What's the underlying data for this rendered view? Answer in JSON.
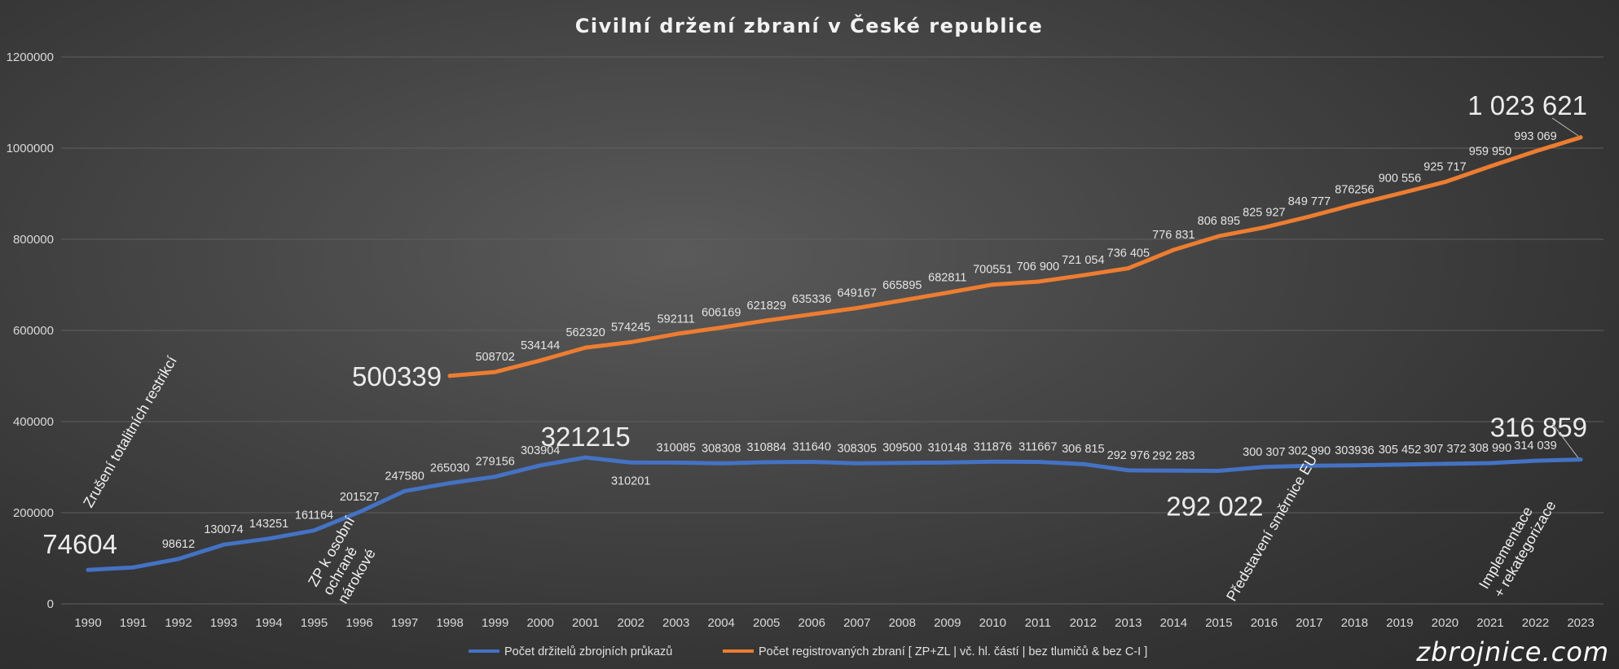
{
  "chart_data": {
    "type": "line",
    "title": "Civilní držení zbraní v České republice",
    "xlabel": "",
    "ylabel": "",
    "ylim": [
      0,
      1200000
    ],
    "yticks": [
      {
        "value": 0,
        "label": "0"
      },
      {
        "value": 200000,
        "label": "200000"
      },
      {
        "value": 400000,
        "label": "400000"
      },
      {
        "value": 600000,
        "label": "600000"
      },
      {
        "value": 800000,
        "label": "800000"
      },
      {
        "value": 1000000,
        "label": "1000000"
      },
      {
        "value": 1200000,
        "label": "1200000"
      }
    ],
    "grid": true,
    "legend": "bottom",
    "categories": [
      "1990",
      "1991",
      "1992",
      "1993",
      "1994",
      "1995",
      "1996",
      "1997",
      "1998",
      "1999",
      "2000",
      "2001",
      "2002",
      "2003",
      "2004",
      "2005",
      "2006",
      "2007",
      "2008",
      "2009",
      "2010",
      "2011",
      "2012",
      "2013",
      "2014",
      "2015",
      "2016",
      "2017",
      "2018",
      "2019",
      "2020",
      "2021",
      "2022",
      "2023"
    ],
    "series": [
      {
        "name": "Počet držitelů zbrojních průkazů",
        "color": "#4472c4",
        "values": [
          74604,
          80000,
          98612,
          130074,
          143251,
          161164,
          201527,
          247580,
          265030,
          279156,
          303904,
          321215,
          310201,
          310085,
          308308,
          310884,
          311640,
          308305,
          309500,
          310148,
          311876,
          311667,
          306815,
          292976,
          292283,
          292022,
          300307,
          302990,
          303936,
          305452,
          307372,
          308990,
          314039,
          316859
        ],
        "labels": [
          "74604",
          "",
          "98612",
          "130074",
          "143251",
          "161164",
          "201527",
          "247580",
          "265030",
          "279156",
          "303904",
          "321215",
          "310201",
          "310085",
          "308308",
          "310884",
          "311640",
          "308305",
          "309500",
          "310148",
          "311876",
          "311667",
          "306 815",
          "292 976",
          "292 283",
          "292 022",
          "300 307",
          "302 990",
          "303936",
          "305 452",
          "307 372",
          "308 990",
          "314 039",
          "316 859"
        ]
      },
      {
        "name": "Počet registrovaných zbraní [ ZP+ZL | vč. hl. částí | bez tlumičů & bez C-I ]",
        "color": "#ed7d31",
        "values": [
          null,
          null,
          null,
          null,
          null,
          null,
          null,
          null,
          500339,
          508702,
          534144,
          562320,
          574245,
          592111,
          606169,
          621829,
          635336,
          649167,
          665895,
          682811,
          700551,
          706900,
          721054,
          736405,
          776831,
          806895,
          825927,
          849777,
          876256,
          900556,
          925717,
          959950,
          993069,
          1023621
        ],
        "labels": [
          "",
          "",
          "",
          "",
          "",
          "",
          "",
          "",
          "500339",
          "508702",
          "534144",
          "562320",
          "574245",
          "592111",
          "606169",
          "621829",
          "635336",
          "649167",
          "665895",
          "682811",
          "700551",
          "706 900",
          "721 054",
          "736 405",
          "776 831",
          "806 895",
          "825 927",
          "849 777",
          "876256",
          "900 556",
          "925 717",
          "959 950",
          "993 069",
          "1 023 621"
        ]
      }
    ],
    "annotations": [
      {
        "text": "Zrušení totalitních restrikcí",
        "year": "1990"
      },
      {
        "text": "ZP k osobní ochraně nárokové",
        "year": "1995"
      },
      {
        "text": "Představení směrnice EU",
        "year": "2016"
      },
      {
        "text": "Implementace + rekategorizace",
        "year": "2021"
      }
    ]
  },
  "brand": "zbrojnice.com"
}
